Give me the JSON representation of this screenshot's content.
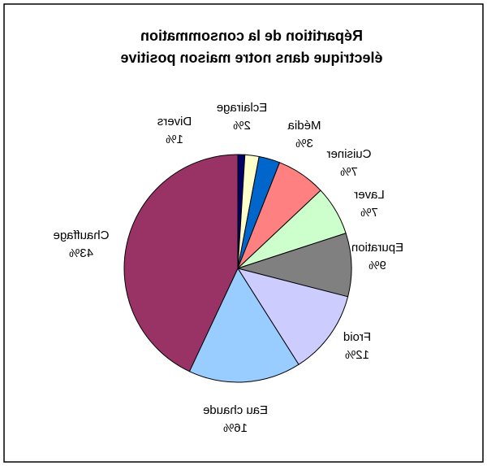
{
  "chart_data": {
    "type": "pie",
    "title": [
      "Répartition de la consommation",
      "électrique dans notre maison positive"
    ],
    "categories": [
      "Divers",
      "Eclairage",
      "Média",
      "Cuisiner",
      "Laver",
      "Epuration",
      "Froid",
      "Eau chaude",
      "Chauffage"
    ],
    "values": [
      1,
      2,
      3,
      7,
      7,
      9,
      12,
      16,
      43
    ],
    "value_labels": [
      "1%",
      "2%",
      "3%",
      "7%",
      "7%",
      "9%",
      "12%",
      "16%",
      "43%"
    ],
    "colors": [
      "#000066",
      "#ffffcc",
      "#0066cc",
      "#ff8080",
      "#ccffcc",
      "#808080",
      "#ccccff",
      "#99ccff",
      "#993366"
    ]
  }
}
